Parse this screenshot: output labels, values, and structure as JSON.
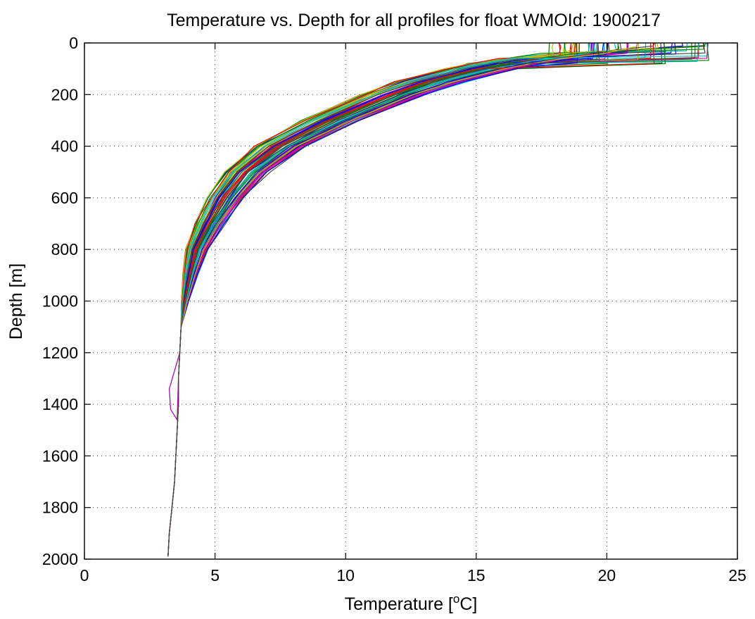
{
  "chart_data": {
    "type": "line",
    "title": "Temperature vs. Depth for all profiles for float WMOId: 1900217",
    "xlabel_main": "Temperature [",
    "xlabel_sup": "o",
    "xlabel_end": "C]",
    "ylabel": "Depth [m]",
    "xlim": [
      0,
      25
    ],
    "ylim": [
      0,
      2000
    ],
    "y_reversed": true,
    "grid": true,
    "legend": "none",
    "xticks": [
      0,
      5,
      10,
      15,
      20,
      25
    ],
    "yticks": [
      0,
      200,
      400,
      600,
      800,
      1000,
      1200,
      1400,
      1600,
      1800,
      2000
    ],
    "xtick_labels": [
      "0",
      "5",
      "10",
      "15",
      "20",
      "25"
    ],
    "ytick_labels": [
      "0",
      "200",
      "400",
      "600",
      "800",
      "1000",
      "1200",
      "1400",
      "1600",
      "1800",
      "2000"
    ],
    "colors": [
      "#0000ff",
      "#008000",
      "#ff0000",
      "#00bfbf",
      "#bf00bf",
      "#bfbf00",
      "#404040"
    ],
    "profile_count": 70,
    "profile_shape": {
      "depth": [
        0,
        40,
        60,
        80,
        100,
        150,
        200,
        300,
        400,
        500,
        600,
        700,
        800,
        900,
        1000,
        1100,
        1200,
        1300,
        1400,
        1500,
        1600,
        1700,
        1800,
        1900,
        1990
      ],
      "temperature": [
        20.5,
        19.0,
        17.4,
        16.2,
        15.2,
        13.3,
        11.8,
        9.5,
        7.5,
        6.2,
        5.4,
        4.8,
        4.3,
        4.05,
        3.85,
        3.7,
        3.65,
        3.6,
        3.6,
        3.55,
        3.5,
        3.45,
        3.35,
        3.25,
        3.2
      ]
    },
    "surface_temperature_range": [
      17.8,
      24.2
    ],
    "mixed_layer_depth_range": [
      10,
      90
    ]
  }
}
